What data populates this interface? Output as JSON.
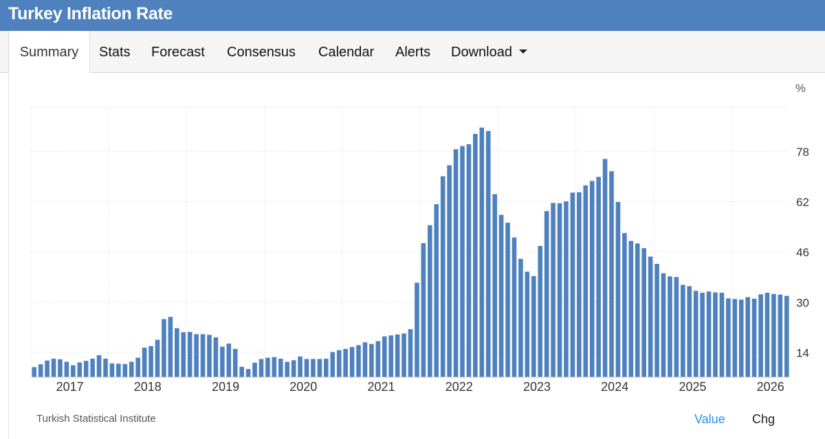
{
  "header": {
    "title": "Turkey Inflation Rate"
  },
  "tabs": [
    {
      "label": "Summary",
      "active": true
    },
    {
      "label": "Stats"
    },
    {
      "label": "Forecast"
    },
    {
      "label": "Consensus"
    },
    {
      "label": "Calendar"
    },
    {
      "label": "Alerts"
    },
    {
      "label": "Download"
    }
  ],
  "colors": {
    "bar": "#4e81bd",
    "header": "#4e81bd",
    "accent": "#1e90ff"
  },
  "footer": {
    "source": "Turkish Statistical Institute",
    "toggle_value": "Value",
    "toggle_chg": "Chg"
  },
  "chart_data": {
    "type": "bar",
    "unit_label": "%",
    "ylim": [
      6,
      92
    ],
    "yticks": [
      14,
      30,
      46,
      62,
      78
    ],
    "grid": true,
    "x_start": "2017-01",
    "x_end": "2026-08",
    "xticks": [
      "2017",
      "2018",
      "2019",
      "2020",
      "2021",
      "2022",
      "2023",
      "2024",
      "2025",
      "2026"
    ],
    "values": [
      9.2,
      10.1,
      11.3,
      11.9,
      11.7,
      10.9,
      9.8,
      10.7,
      11.2,
      11.9,
      13.0,
      11.9,
      10.4,
      10.3,
      10.2,
      10.9,
      12.2,
      15.4,
      15.9,
      17.9,
      24.5,
      25.2,
      21.6,
      20.3,
      20.4,
      19.7,
      19.7,
      19.5,
      18.7,
      15.7,
      16.7,
      15.0,
      9.3,
      8.6,
      10.6,
      11.8,
      12.2,
      12.4,
      11.9,
      10.9,
      11.4,
      12.6,
      11.8,
      11.8,
      11.8,
      11.9,
      14.0,
      14.6,
      15.0,
      15.6,
      16.2,
      17.1,
      16.6,
      17.5,
      19.0,
      19.3,
      19.6,
      19.9,
      21.3,
      36.1,
      48.7,
      54.4,
      61.1,
      70.0,
      73.5,
      78.6,
      79.6,
      80.2,
      83.5,
      85.5,
      84.4,
      64.3,
      57.7,
      55.2,
      50.5,
      43.7,
      39.6,
      38.2,
      47.8,
      58.9,
      61.5,
      61.4,
      62.0,
      64.8,
      64.9,
      67.1,
      68.5,
      69.8,
      75.5,
      71.6,
      61.8,
      51.9,
      49.4,
      48.6,
      47.1,
      44.4,
      42.1,
      39.1,
      38.1,
      37.9,
      35.4,
      35.0,
      33.5,
      32.9,
      33.3,
      33.0,
      32.9,
      31.1,
      30.9,
      30.7,
      31.5,
      31.0,
      32.4,
      32.9,
      32.5,
      32.3,
      31.9
    ]
  }
}
